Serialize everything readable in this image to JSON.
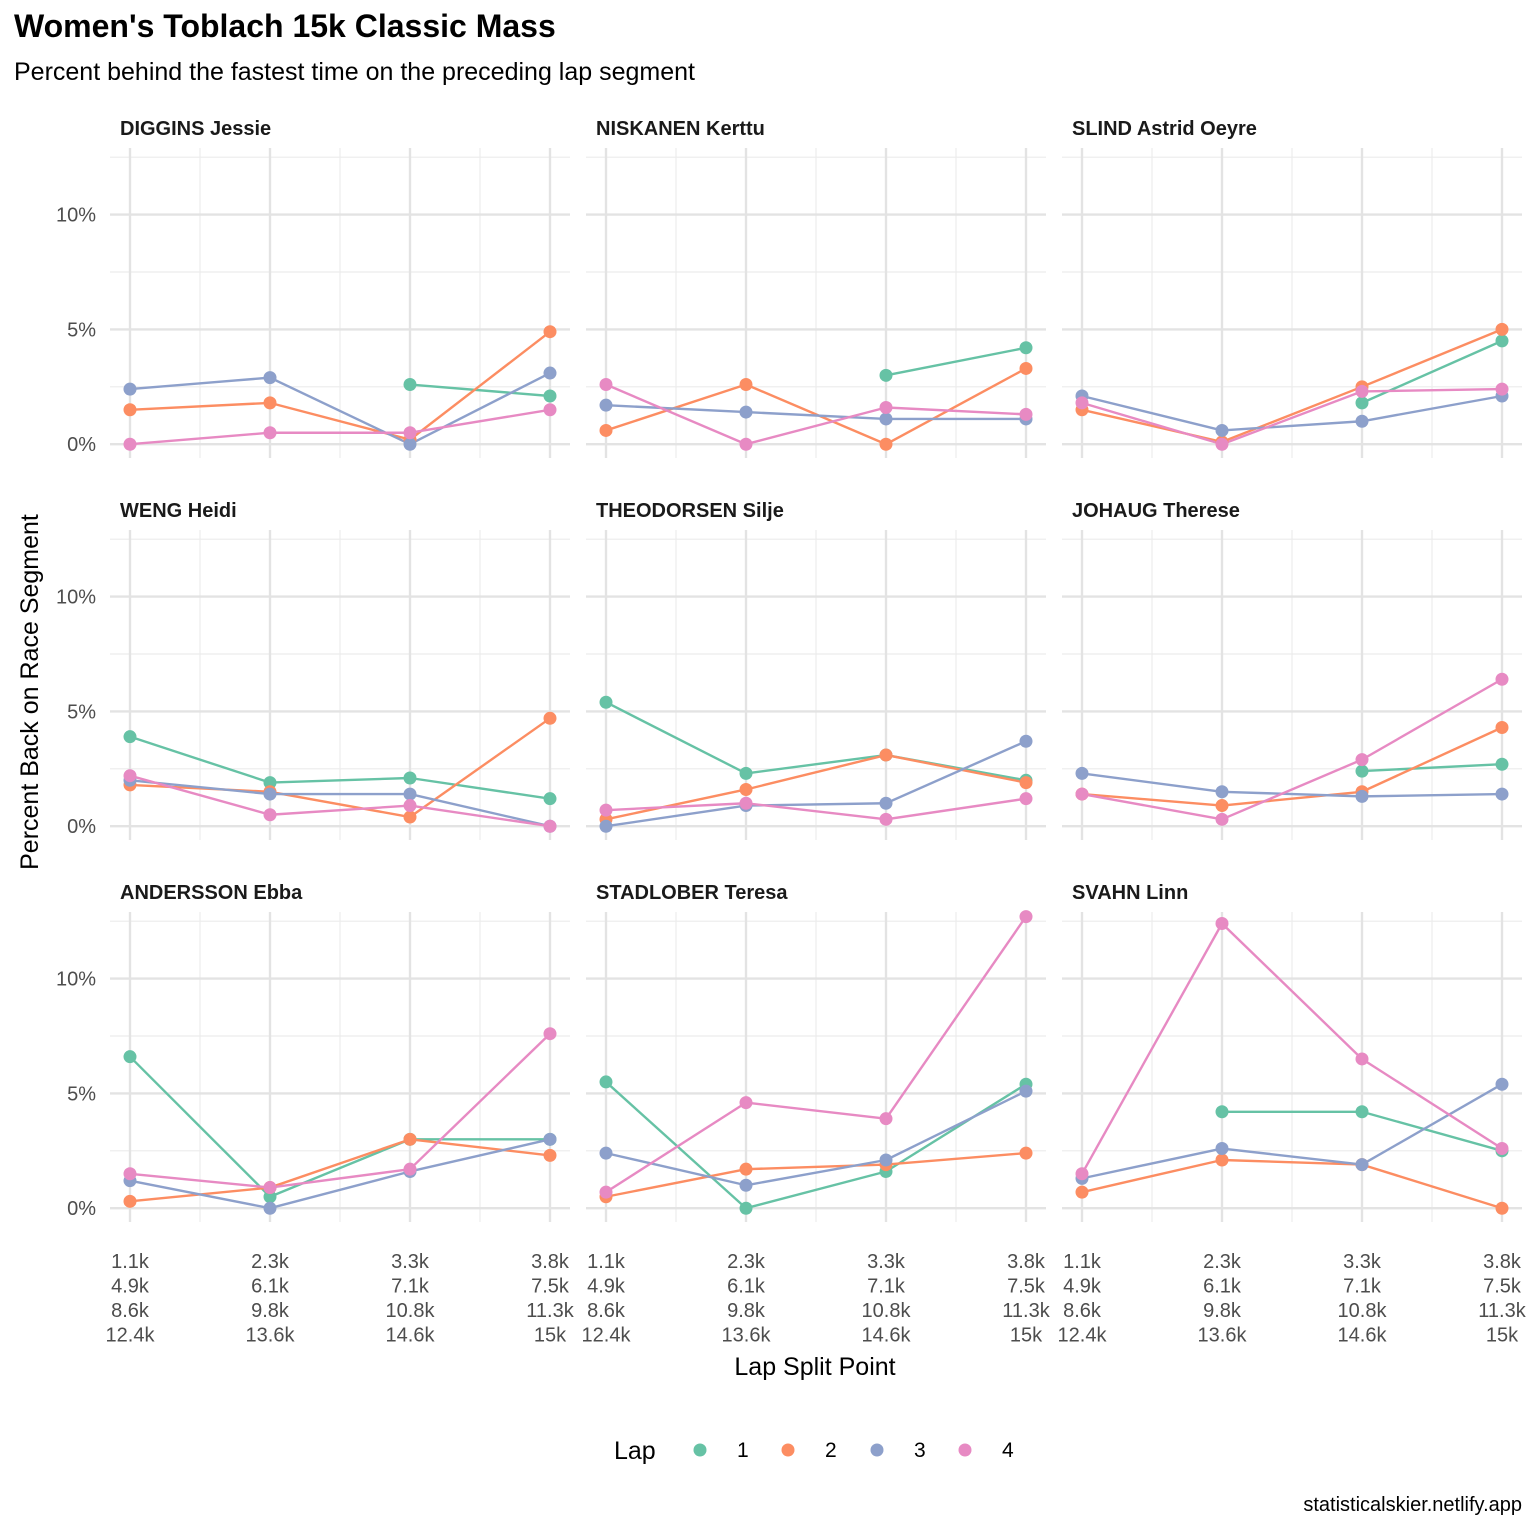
{
  "title": "Women's Toblach 15k Classic Mass",
  "subtitle": "Percent behind the fastest time on the preceding lap segment",
  "caption": "statisticalskier.netlify.app",
  "chart_data": {
    "type": "line",
    "facet_layout": "3x3 grid",
    "xlabel": "Lap Split Point",
    "ylabel": "Percent Back on Race Segment",
    "x_categories": [
      [
        "1.1k",
        "4.9k",
        "8.6k",
        "12.4k"
      ],
      [
        "2.3k",
        "6.1k",
        "9.8k",
        "13.6k"
      ],
      [
        "3.3k",
        "7.1k",
        "10.8k",
        "14.6k"
      ],
      [
        "3.8k",
        "7.5k",
        "11.3k",
        "15k"
      ]
    ],
    "y_ticks": [
      0,
      5,
      10
    ],
    "y_tick_labels": [
      "0%",
      "5%",
      "10%"
    ],
    "ylim": [
      -0.6,
      12.9
    ],
    "grid": true,
    "legend": {
      "title": "Lap",
      "position": "bottom",
      "entries": [
        "1",
        "2",
        "3",
        "4"
      ],
      "colors": [
        "#66C2A5",
        "#FC8D62",
        "#8DA0CB",
        "#E78AC3"
      ]
    },
    "panels": [
      {
        "name": "DIGGINS Jessie",
        "series": [
          {
            "name": "1",
            "values": [
              null,
              null,
              2.6,
              2.1
            ]
          },
          {
            "name": "2",
            "values": [
              1.5,
              1.8,
              0.2,
              4.9
            ]
          },
          {
            "name": "3",
            "values": [
              2.4,
              2.9,
              0.0,
              3.1
            ]
          },
          {
            "name": "4",
            "values": [
              0.0,
              0.5,
              0.5,
              1.5
            ]
          }
        ]
      },
      {
        "name": "NISKANEN Kerttu",
        "series": [
          {
            "name": "1",
            "values": [
              null,
              null,
              3.0,
              4.2
            ]
          },
          {
            "name": "2",
            "values": [
              0.6,
              2.6,
              0.0,
              3.3
            ]
          },
          {
            "name": "3",
            "values": [
              1.7,
              1.4,
              1.1,
              1.1
            ]
          },
          {
            "name": "4",
            "values": [
              2.6,
              0.0,
              1.6,
              1.3
            ]
          }
        ]
      },
      {
        "name": "SLIND Astrid Oeyre",
        "series": [
          {
            "name": "1",
            "values": [
              null,
              null,
              1.8,
              4.5
            ]
          },
          {
            "name": "2",
            "values": [
              1.5,
              0.1,
              2.5,
              5.0
            ]
          },
          {
            "name": "3",
            "values": [
              2.1,
              0.6,
              1.0,
              2.1
            ]
          },
          {
            "name": "4",
            "values": [
              1.8,
              0.0,
              2.3,
              2.4
            ]
          }
        ]
      },
      {
        "name": "WENG Heidi",
        "series": [
          {
            "name": "1",
            "values": [
              3.9,
              1.9,
              2.1,
              1.2
            ]
          },
          {
            "name": "2",
            "values": [
              1.8,
              1.5,
              0.4,
              4.7
            ]
          },
          {
            "name": "3",
            "values": [
              2.0,
              1.4,
              1.4,
              0.0
            ]
          },
          {
            "name": "4",
            "values": [
              2.2,
              0.5,
              0.9,
              0.0
            ]
          }
        ]
      },
      {
        "name": "THEODORSEN Silje",
        "series": [
          {
            "name": "1",
            "values": [
              5.4,
              2.3,
              3.1,
              2.0
            ]
          },
          {
            "name": "2",
            "values": [
              0.3,
              1.6,
              3.1,
              1.9
            ]
          },
          {
            "name": "3",
            "values": [
              0.0,
              0.9,
              1.0,
              3.7
            ]
          },
          {
            "name": "4",
            "values": [
              0.7,
              1.0,
              0.3,
              1.2
            ]
          }
        ]
      },
      {
        "name": "JOHAUG Therese",
        "series": [
          {
            "name": "1",
            "values": [
              null,
              null,
              2.4,
              2.7
            ]
          },
          {
            "name": "2",
            "values": [
              1.4,
              0.9,
              1.5,
              4.3
            ]
          },
          {
            "name": "3",
            "values": [
              2.3,
              1.5,
              1.3,
              1.4
            ]
          },
          {
            "name": "4",
            "values": [
              1.4,
              0.3,
              2.9,
              6.4
            ]
          }
        ]
      },
      {
        "name": "ANDERSSON Ebba",
        "series": [
          {
            "name": "1",
            "values": [
              6.6,
              0.5,
              3.0,
              3.0
            ]
          },
          {
            "name": "2",
            "values": [
              0.3,
              0.9,
              3.0,
              2.3
            ]
          },
          {
            "name": "3",
            "values": [
              1.2,
              0.0,
              1.6,
              3.0
            ]
          },
          {
            "name": "4",
            "values": [
              1.5,
              0.9,
              1.7,
              7.6
            ]
          }
        ]
      },
      {
        "name": "STADLOBER Teresa",
        "series": [
          {
            "name": "1",
            "values": [
              5.5,
              0.0,
              1.6,
              5.4
            ]
          },
          {
            "name": "2",
            "values": [
              0.5,
              1.7,
              1.9,
              2.4
            ]
          },
          {
            "name": "3",
            "values": [
              2.4,
              1.0,
              2.1,
              5.1
            ]
          },
          {
            "name": "4",
            "values": [
              0.7,
              4.6,
              3.9,
              12.7
            ]
          }
        ]
      },
      {
        "name": "SVAHN Linn",
        "series": [
          {
            "name": "1",
            "values": [
              null,
              4.2,
              4.2,
              2.5
            ]
          },
          {
            "name": "2",
            "values": [
              0.7,
              2.1,
              1.9,
              0.0
            ]
          },
          {
            "name": "3",
            "values": [
              1.3,
              2.6,
              1.9,
              5.4
            ]
          },
          {
            "name": "4",
            "values": [
              1.5,
              12.4,
              6.5,
              2.6
            ]
          }
        ]
      }
    ]
  }
}
